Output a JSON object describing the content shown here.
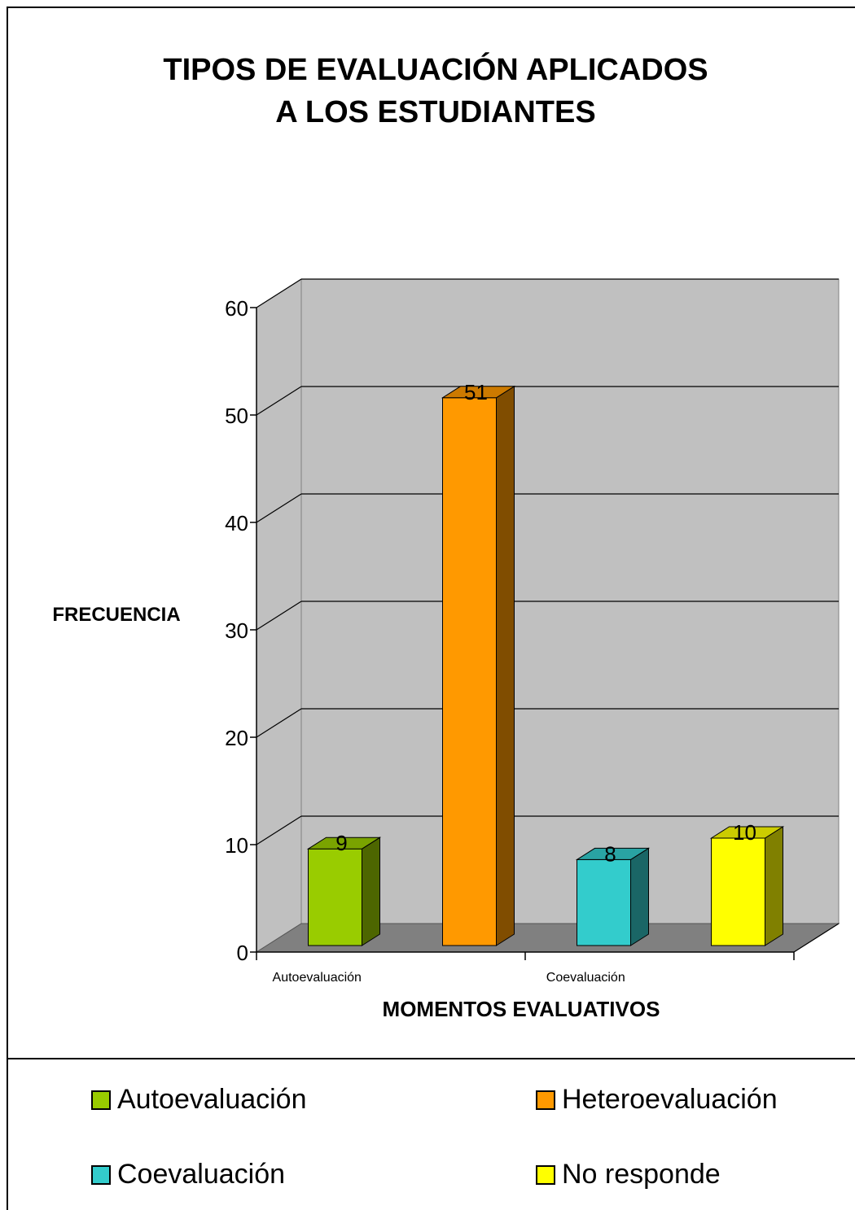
{
  "chart_data": {
    "type": "bar",
    "title": "TIPOS DE EVALUACIÓN APLICADOS\nA LOS ESTUDIANTES",
    "xlabel": "MOMENTOS EVALUATIVOS",
    "ylabel": "FRECUENCIA",
    "categories": [
      "Autoevaluación",
      "Heteroevaluación",
      "Coevaluación",
      "No responde"
    ],
    "x_tick_labels": [
      "Autoevaluación",
      "Coevaluación"
    ],
    "values": [
      9,
      51,
      8,
      10
    ],
    "data_labels": [
      "9",
      "51",
      "8",
      "10"
    ],
    "colors": [
      "#99cc00",
      "#ff9900",
      "#33cccc",
      "#ffff00"
    ],
    "ylim": [
      0,
      60
    ],
    "y_ticks": [
      0,
      10,
      20,
      30,
      40,
      50,
      60
    ],
    "grid": true,
    "three_d": true,
    "legend_position": "bottom",
    "wall_color": "#c0c0c0",
    "floor_color": "#808080"
  }
}
